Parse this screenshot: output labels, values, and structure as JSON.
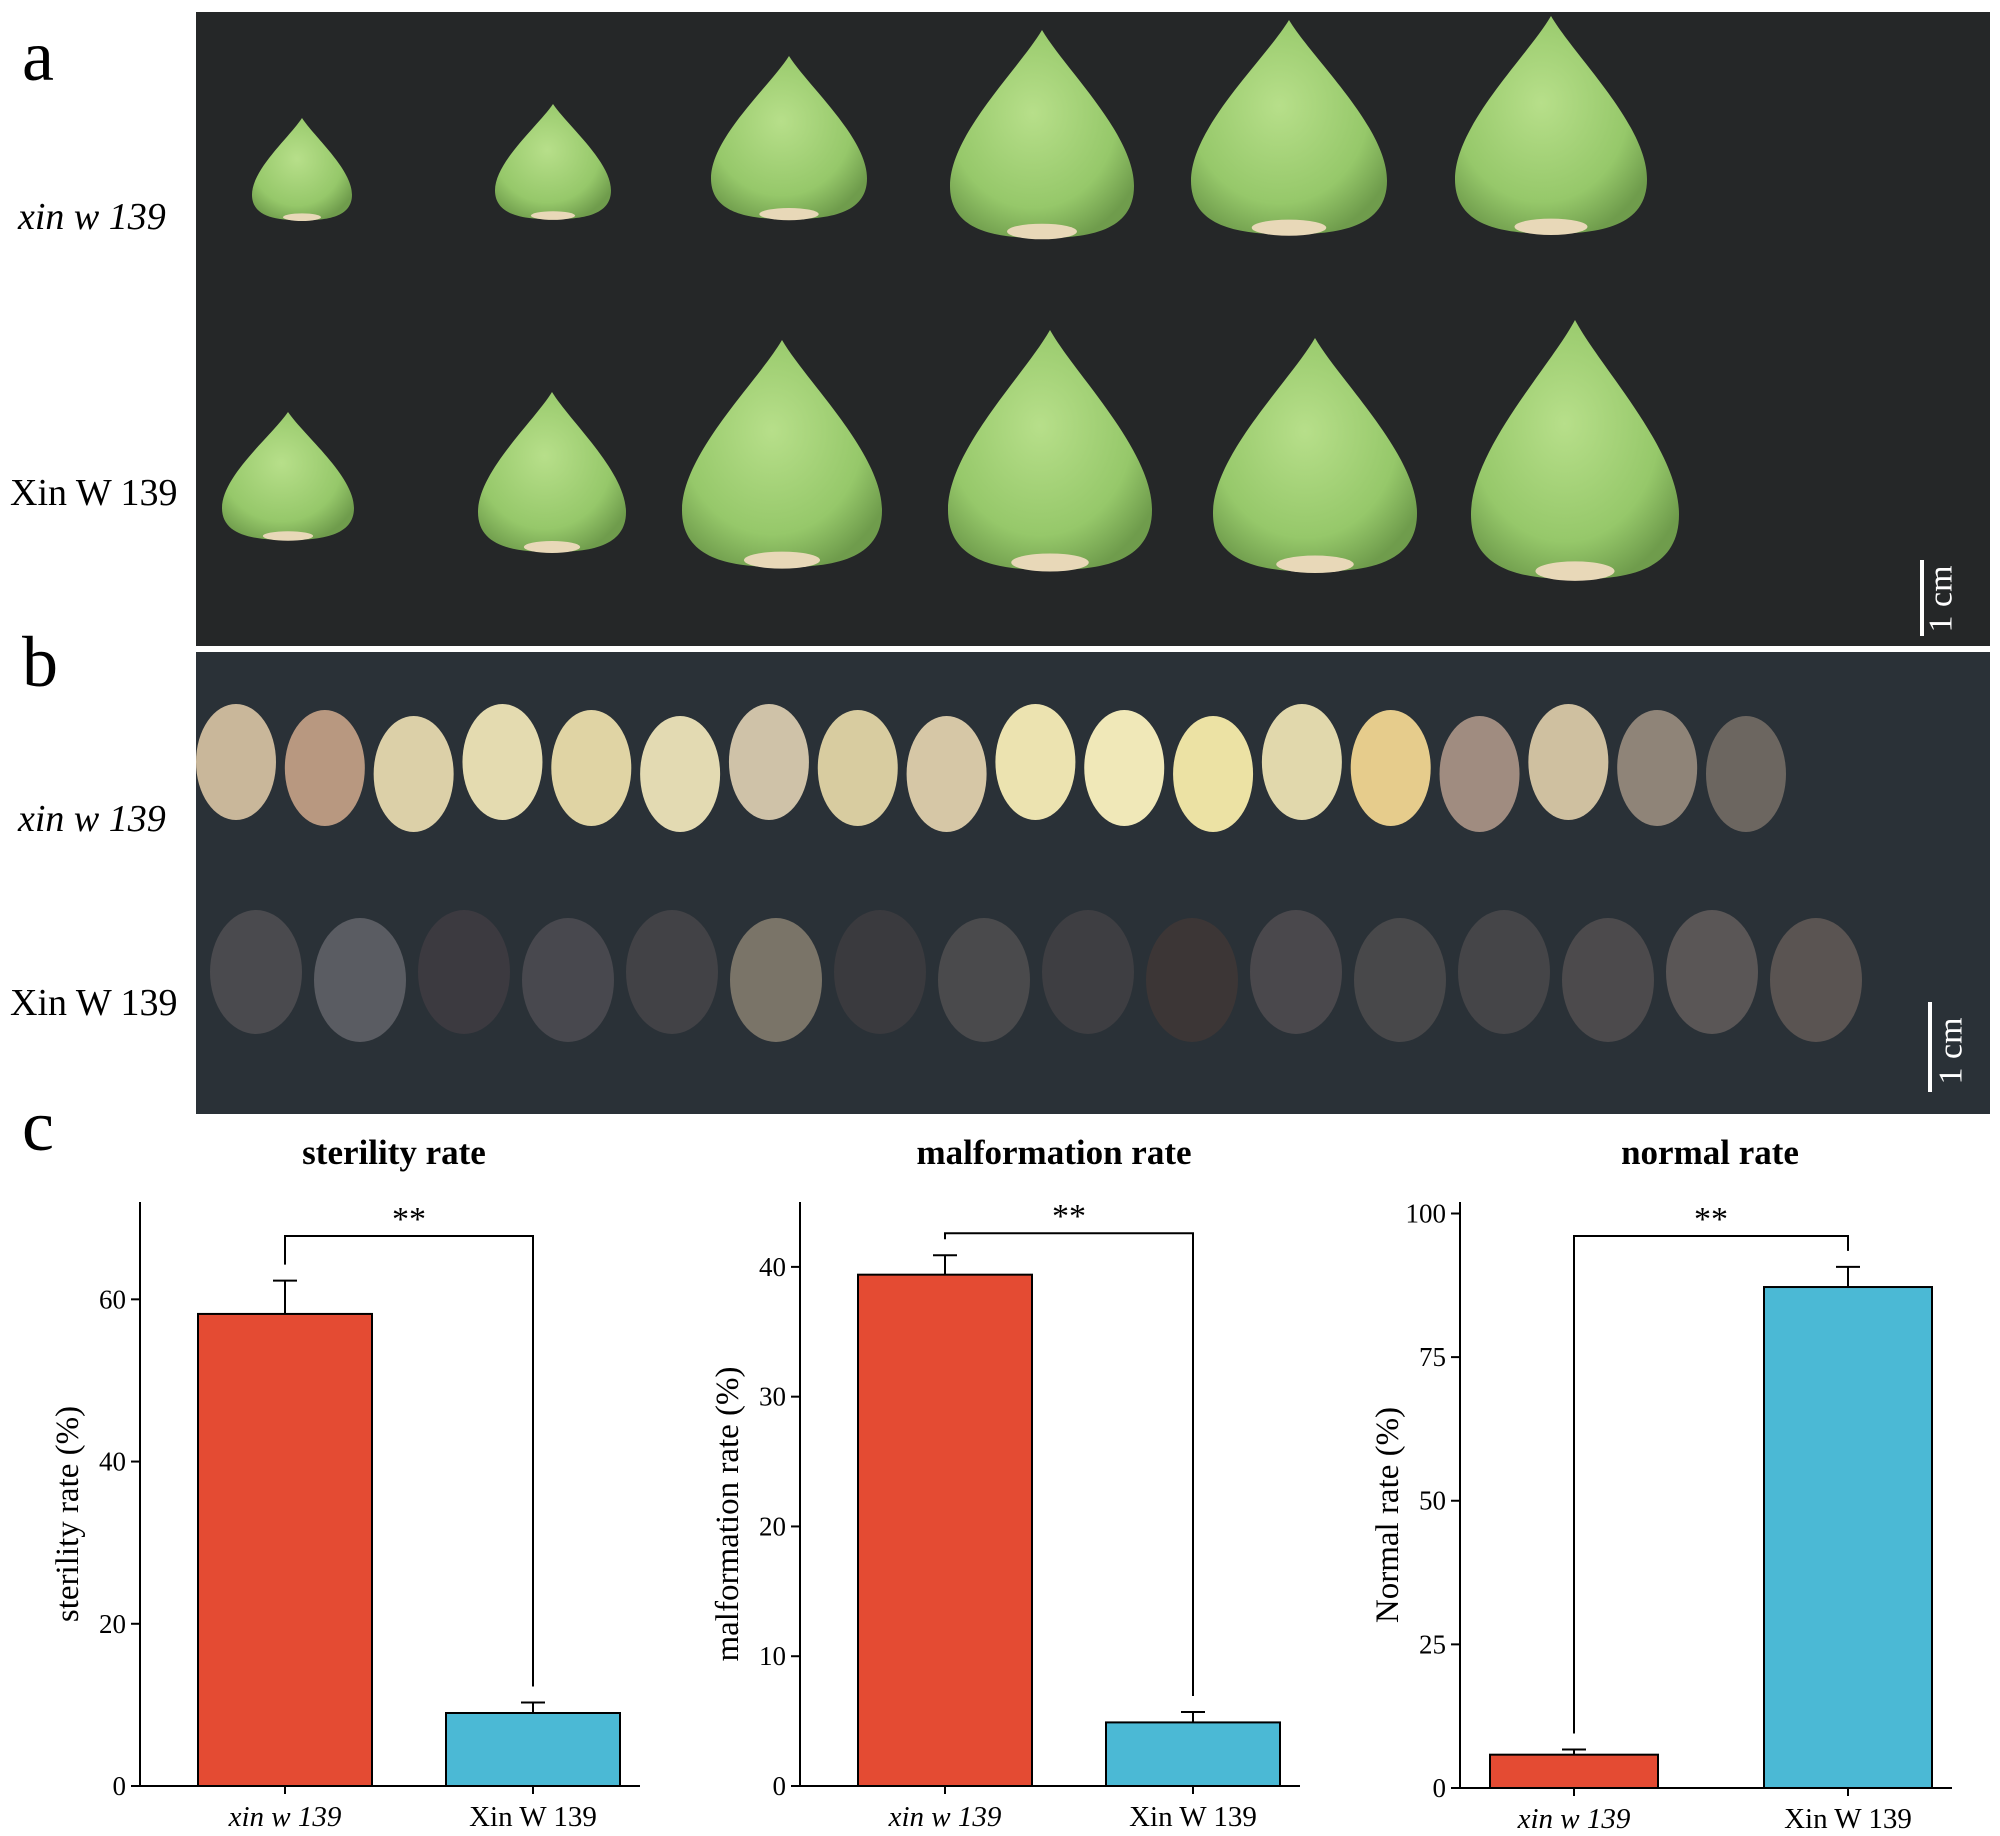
{
  "panels": {
    "a": {
      "letter": "a",
      "rows": [
        "xin w 139",
        "Xin W 139"
      ],
      "scale_bar": "1 cm"
    },
    "b": {
      "letter": "b",
      "rows": [
        "xin w 139",
        "Xin W 139"
      ],
      "scale_bar": "1 cm"
    },
    "c": {
      "letter": "c"
    }
  },
  "colors": {
    "mutant_bar": "#e44b33",
    "wildtype_bar": "#4bb9d5",
    "photo_a_bg": "#252728",
    "photo_b_bg": "#2a3137",
    "fruit_green": "#9ccf72",
    "seed_light": "#e3dcb8",
    "seed_dark": "#3b3a3c"
  },
  "chart_data": [
    {
      "type": "bar",
      "title": "sterility rate",
      "xlabel": "",
      "ylabel": "sterility rate (%)",
      "categories": [
        "xin w 139",
        "Xin W 139"
      ],
      "values": [
        58.2,
        9.0
      ],
      "errors": [
        4.1,
        1.3
      ],
      "ylim": [
        0,
        72
      ],
      "yticks": [
        0,
        20,
        40,
        60
      ],
      "significance": "**"
    },
    {
      "type": "bar",
      "title": "malformation rate",
      "xlabel": "",
      "ylabel": "malformation rate (%)",
      "categories": [
        "xin w 139",
        "Xin W 139"
      ],
      "values": [
        39.4,
        4.9
      ],
      "errors": [
        1.5,
        0.8
      ],
      "ylim": [
        0,
        45
      ],
      "yticks": [
        0,
        10,
        20,
        30,
        40
      ],
      "significance": "**"
    },
    {
      "type": "bar",
      "title": "normal rate",
      "xlabel": "",
      "ylabel": "Normal rate (%)",
      "categories": [
        "xin w 139",
        "Xin W 139"
      ],
      "values": [
        5.8,
        87.2
      ],
      "errors": [
        0.9,
        3.5
      ],
      "ylim": [
        0,
        102
      ],
      "yticks": [
        0,
        25,
        50,
        75,
        100
      ],
      "significance": "**"
    }
  ]
}
